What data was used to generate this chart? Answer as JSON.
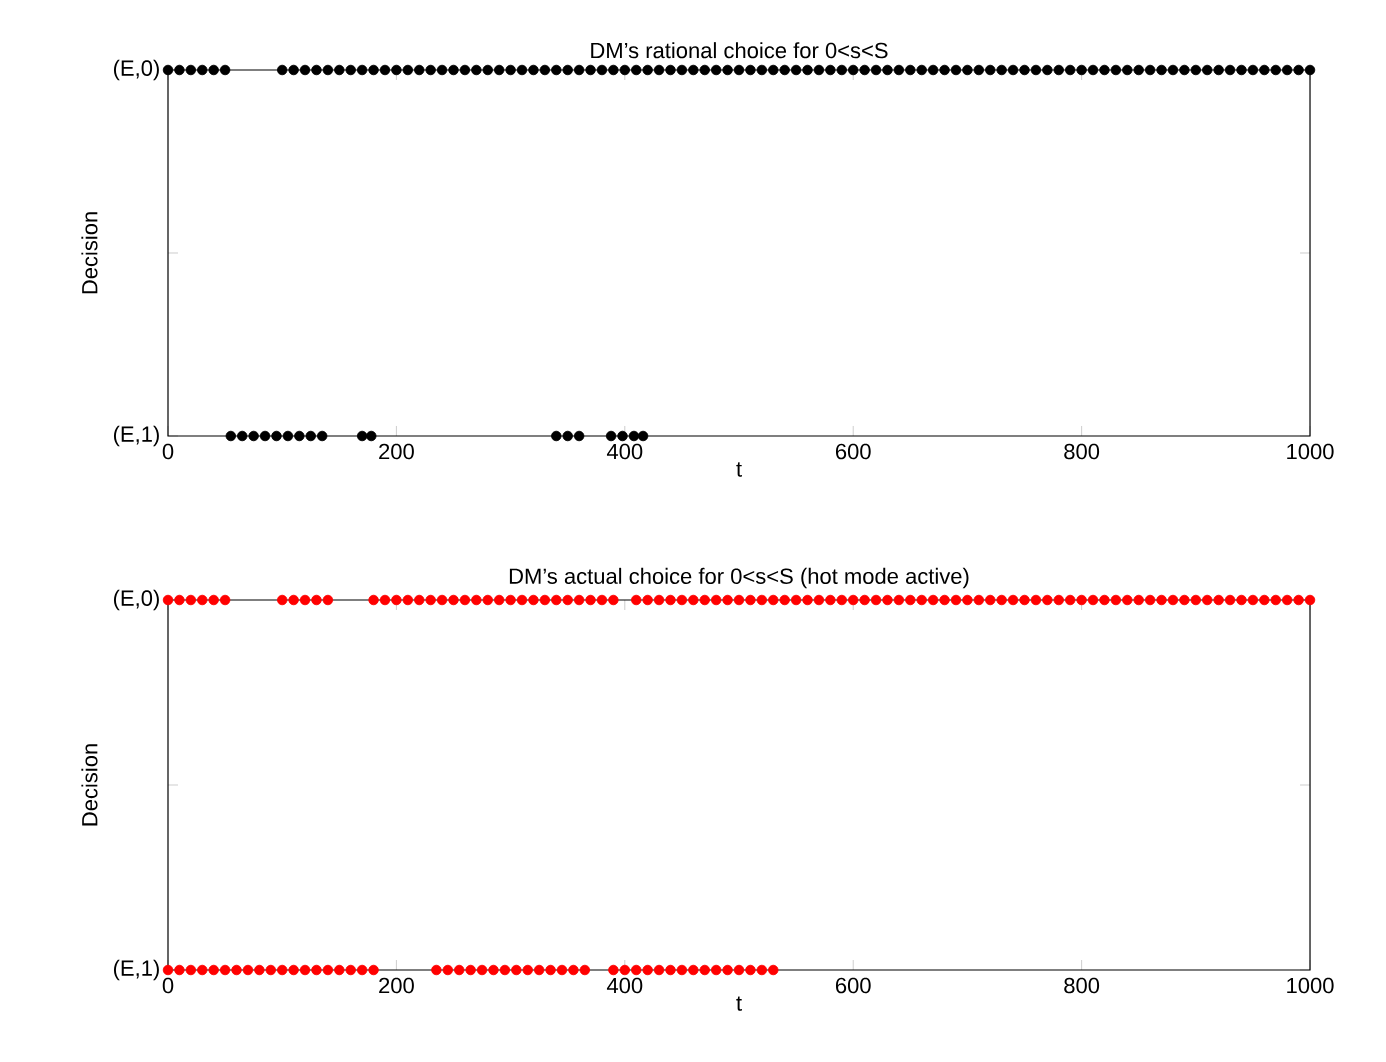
{
  "chart_data": [
    {
      "type": "scatter",
      "title": "DM’s rational choice for 0<s<S",
      "xlabel": "t",
      "ylabel": "Decision",
      "marker": "circle",
      "xlim": [
        0,
        1000
      ],
      "ylim": [
        1,
        0
      ],
      "xticks": [
        0,
        200,
        400,
        600,
        800,
        1000
      ],
      "yticks": [
        {
          "value": 1,
          "label": "(E,1)"
        },
        {
          "value": 0.5,
          "label": null
        },
        {
          "value": 0,
          "label": "(E,0)"
        }
      ],
      "series": [
        {
          "color": "#000000",
          "x": [
            0,
            10,
            20,
            30,
            40,
            50,
            100,
            110,
            120,
            130,
            140,
            150,
            160,
            170,
            180,
            190,
            200,
            210,
            220,
            230,
            240,
            250,
            260,
            270,
            280,
            290,
            300,
            310,
            320,
            330,
            340,
            350,
            360,
            370,
            380,
            390,
            400,
            410,
            420,
            430,
            440,
            450,
            460,
            470,
            480,
            490,
            500,
            510,
            520,
            530,
            540,
            550,
            560,
            570,
            580,
            590,
            600,
            610,
            620,
            630,
            640,
            650,
            660,
            670,
            680,
            690,
            700,
            710,
            720,
            730,
            740,
            750,
            760,
            770,
            780,
            790,
            800,
            810,
            820,
            830,
            840,
            850,
            860,
            870,
            880,
            890,
            900,
            910,
            920,
            930,
            940,
            950,
            960,
            970,
            980,
            990,
            1000
          ],
          "values": [
            0,
            0,
            0,
            0,
            0,
            0,
            0,
            0,
            0,
            0,
            0,
            0,
            0,
            0,
            0,
            0,
            0,
            0,
            0,
            0,
            0,
            0,
            0,
            0,
            0,
            0,
            0,
            0,
            0,
            0,
            0,
            0,
            0,
            0,
            0,
            0,
            0,
            0,
            0,
            0,
            0,
            0,
            0,
            0,
            0,
            0,
            0,
            0,
            0,
            0,
            0,
            0,
            0,
            0,
            0,
            0,
            0,
            0,
            0,
            0,
            0,
            0,
            0,
            0,
            0,
            0,
            0,
            0,
            0,
            0,
            0,
            0,
            0,
            0,
            0,
            0,
            0,
            0,
            0,
            0,
            0,
            0,
            0,
            0,
            0,
            0,
            0,
            0,
            0,
            0,
            0,
            0,
            0,
            0,
            0,
            0,
            0
          ]
        },
        {
          "color": "#000000",
          "x": [
            55,
            65,
            75,
            85,
            95,
            105,
            115,
            125,
            135,
            170,
            178,
            340,
            350,
            360,
            388,
            398,
            408,
            416
          ],
          "values": [
            1,
            1,
            1,
            1,
            1,
            1,
            1,
            1,
            1,
            1,
            1,
            1,
            1,
            1,
            1,
            1,
            1,
            1
          ]
        }
      ]
    },
    {
      "type": "scatter",
      "title": "DM’s actual choice for 0<s<S (hot mode active)",
      "xlabel": "t",
      "ylabel": "Decision",
      "marker": "circle",
      "xlim": [
        0,
        1000
      ],
      "ylim": [
        1,
        0
      ],
      "xticks": [
        0,
        200,
        400,
        600,
        800,
        1000
      ],
      "yticks": [
        {
          "value": 1,
          "label": "(E,1)"
        },
        {
          "value": 0.5,
          "label": null
        },
        {
          "value": 0,
          "label": "(E,0)"
        }
      ],
      "series": [
        {
          "color": "#ff0000",
          "x": [
            0,
            10,
            20,
            30,
            40,
            50,
            100,
            110,
            120,
            130,
            140,
            180,
            190,
            200,
            210,
            220,
            230,
            240,
            250,
            260,
            270,
            280,
            290,
            300,
            310,
            320,
            330,
            340,
            350,
            360,
            370,
            380,
            390,
            410,
            420,
            430,
            440,
            450,
            460,
            470,
            480,
            490,
            500,
            510,
            520,
            530,
            540,
            550,
            560,
            570,
            580,
            590,
            600,
            610,
            620,
            630,
            640,
            650,
            660,
            670,
            680,
            690,
            700,
            710,
            720,
            730,
            740,
            750,
            760,
            770,
            780,
            790,
            800,
            810,
            820,
            830,
            840,
            850,
            860,
            870,
            880,
            890,
            900,
            910,
            920,
            930,
            940,
            950,
            960,
            970,
            980,
            990,
            1000
          ],
          "values": [
            0,
            0,
            0,
            0,
            0,
            0,
            0,
            0,
            0,
            0,
            0,
            0,
            0,
            0,
            0,
            0,
            0,
            0,
            0,
            0,
            0,
            0,
            0,
            0,
            0,
            0,
            0,
            0,
            0,
            0,
            0,
            0,
            0,
            0,
            0,
            0,
            0,
            0,
            0,
            0,
            0,
            0,
            0,
            0,
            0,
            0,
            0,
            0,
            0,
            0,
            0,
            0,
            0,
            0,
            0,
            0,
            0,
            0,
            0,
            0,
            0,
            0,
            0,
            0,
            0,
            0,
            0,
            0,
            0,
            0,
            0,
            0,
            0,
            0,
            0,
            0,
            0,
            0,
            0,
            0,
            0,
            0,
            0,
            0,
            0,
            0,
            0,
            0,
            0,
            0,
            0,
            0,
            0
          ]
        },
        {
          "color": "#ff0000",
          "x": [
            0,
            10,
            20,
            30,
            40,
            50,
            60,
            70,
            80,
            90,
            100,
            110,
            120,
            130,
            140,
            150,
            160,
            170,
            180,
            235,
            245,
            255,
            265,
            275,
            285,
            295,
            305,
            315,
            325,
            335,
            345,
            355,
            365,
            390,
            400,
            410,
            420,
            430,
            440,
            450,
            460,
            470,
            480,
            490,
            500,
            510,
            520,
            530
          ],
          "values": [
            1,
            1,
            1,
            1,
            1,
            1,
            1,
            1,
            1,
            1,
            1,
            1,
            1,
            1,
            1,
            1,
            1,
            1,
            1,
            1,
            1,
            1,
            1,
            1,
            1,
            1,
            1,
            1,
            1,
            1,
            1,
            1,
            1,
            1,
            1,
            1,
            1,
            1,
            1,
            1,
            1,
            1,
            1,
            1,
            1,
            1,
            1,
            1
          ]
        }
      ]
    }
  ]
}
